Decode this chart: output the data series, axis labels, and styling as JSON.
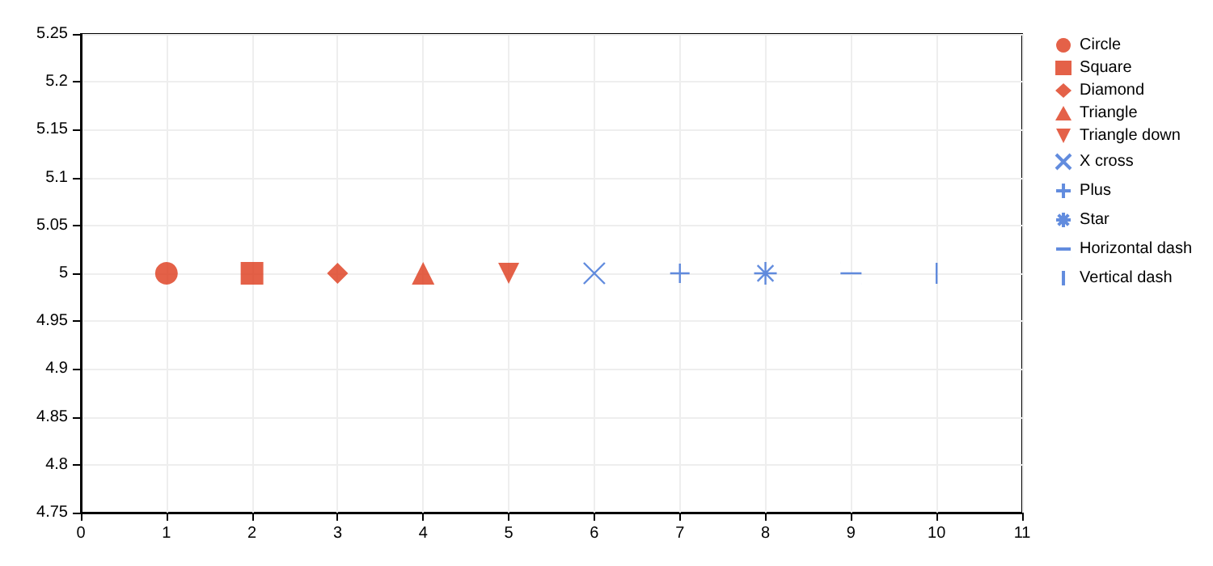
{
  "chart_data": {
    "type": "scatter",
    "xlim": [
      0,
      11
    ],
    "xticks": [
      0,
      1,
      2,
      3,
      4,
      5,
      6,
      7,
      8,
      9,
      10,
      11
    ],
    "ylim": [
      4.75,
      5.25
    ],
    "yticks": [
      4.75,
      4.8,
      4.85,
      4.9,
      4.95,
      5,
      5.05,
      5.1,
      5.15,
      5.2,
      5.25
    ],
    "grid": true,
    "legend": "right",
    "series": [
      {
        "name": "Circle",
        "marker": "circle",
        "color": "#dd3a1a",
        "x": [
          1
        ],
        "values": [
          5
        ]
      },
      {
        "name": "Square",
        "marker": "square",
        "color": "#dd3a1a",
        "x": [
          2
        ],
        "values": [
          5
        ]
      },
      {
        "name": "Diamond",
        "marker": "diamond",
        "color": "#dd3a1a",
        "x": [
          3
        ],
        "values": [
          5
        ]
      },
      {
        "name": "Triangle",
        "marker": "triangle",
        "color": "#dd3a1a",
        "x": [
          4
        ],
        "values": [
          5
        ]
      },
      {
        "name": "Triangle down",
        "marker": "triangle",
        "color": "#dd3a1a",
        "x": [
          5
        ],
        "values": [
          5
        ]
      },
      {
        "name": "X cross",
        "marker": "cross",
        "color": "#3b6fd6",
        "x": [
          6
        ],
        "values": [
          5
        ]
      },
      {
        "name": "Plus",
        "marker": "cross",
        "color": "#3b6fd6",
        "x": [
          7
        ],
        "values": [
          5
        ]
      },
      {
        "name": "Star",
        "marker": "cross",
        "color": "#3b6fd6",
        "x": [
          8
        ],
        "values": [
          5
        ]
      },
      {
        "name": "Horizontal dash",
        "color": "#3b6fd6",
        "x": [
          9
        ],
        "values": [
          5
        ]
      },
      {
        "name": "Vertical dash",
        "color": "#3b6fd6",
        "x": [
          10
        ],
        "values": [
          5
        ]
      }
    ]
  }
}
